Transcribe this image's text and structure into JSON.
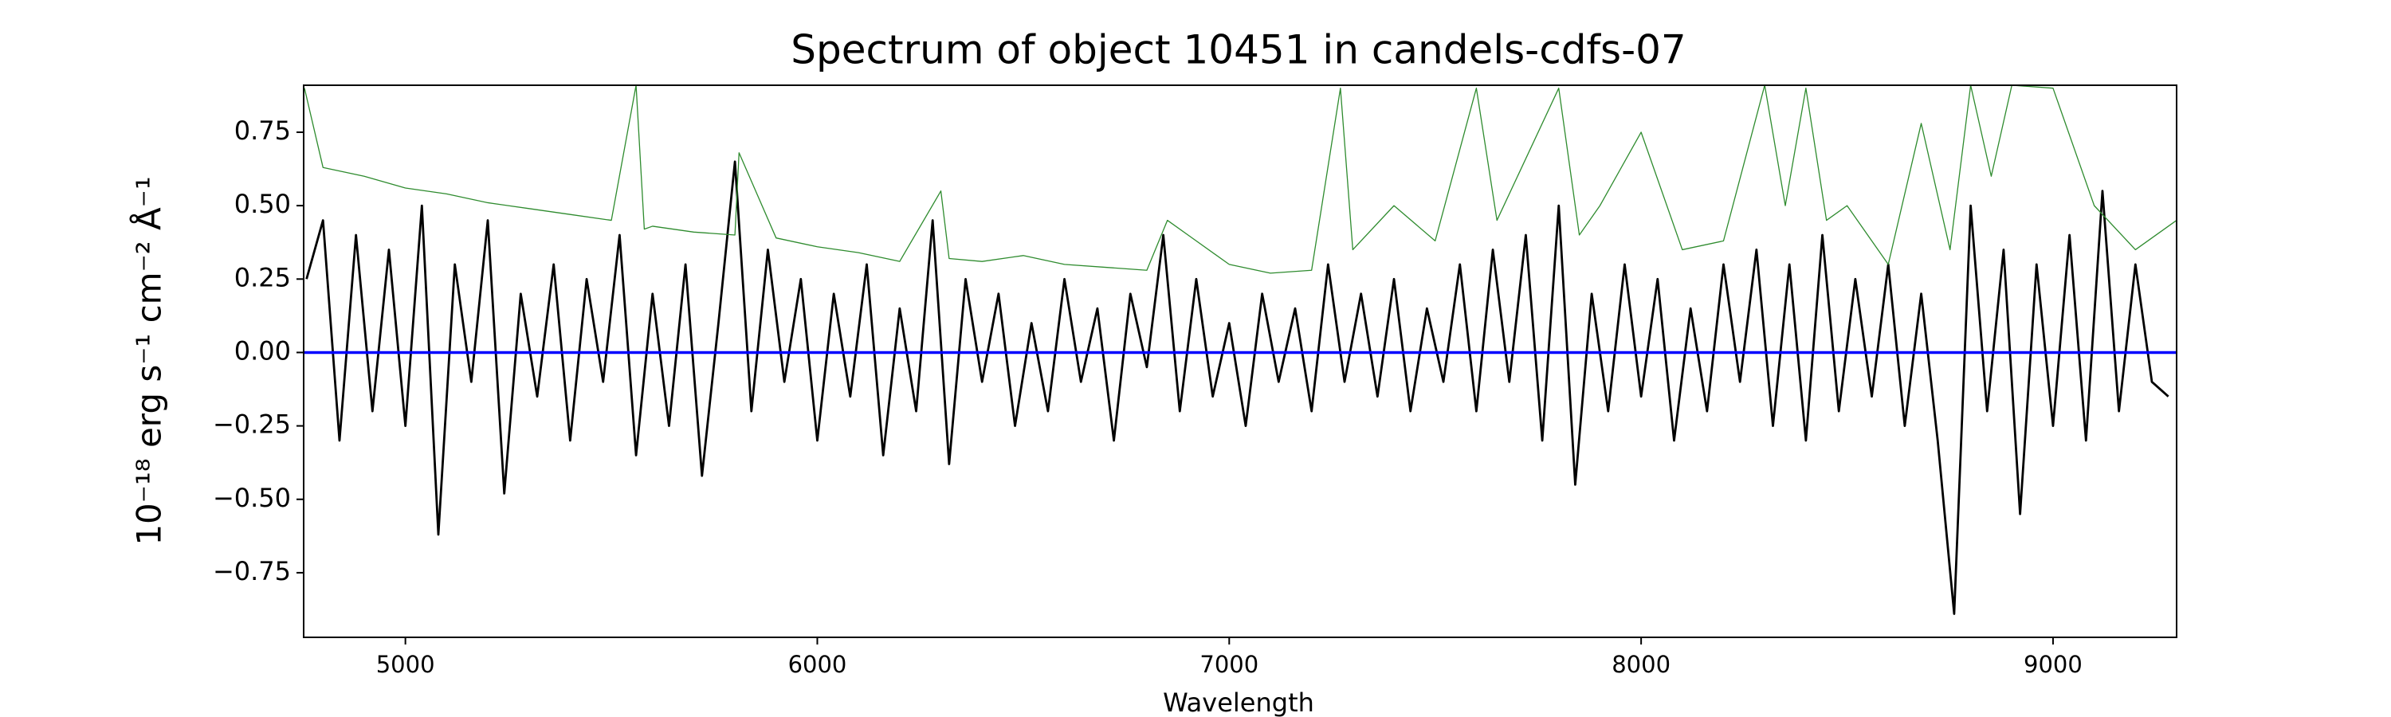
{
  "chart_data": {
    "type": "line",
    "title": "Spectrum of object 10451 in candels-cdfs-07",
    "x_label": "Wavelength",
    "y_label": "10⁻¹⁸ erg s⁻¹ cm⁻² Å⁻¹",
    "xlim": [
      4753,
      9300
    ],
    "ylim": [
      -0.97,
      0.91
    ],
    "xticks": [
      5000,
      6000,
      7000,
      8000,
      9000
    ],
    "yticks": [
      {
        "value": -0.75,
        "label": "−0.75"
      },
      {
        "value": -0.5,
        "label": "−0.50"
      },
      {
        "value": -0.25,
        "label": "−0.25"
      },
      {
        "value": 0,
        "label": "0.00"
      },
      {
        "value": 0.25,
        "label": "0.25"
      },
      {
        "value": 0.5,
        "label": "0.50"
      },
      {
        "value": 0.75,
        "label": "0.75"
      }
    ],
    "series": [
      {
        "color": "#000000",
        "x": [
          4760,
          4800,
          4840,
          4880,
          4920,
          4960,
          5000,
          5040,
          5080,
          5120,
          5160,
          5200,
          5240,
          5280,
          5320,
          5360,
          5400,
          5440,
          5480,
          5520,
          5560,
          5600,
          5640,
          5680,
          5720,
          5760,
          5800,
          5840,
          5880,
          5920,
          5960,
          6000,
          6040,
          6080,
          6120,
          6160,
          6200,
          6240,
          6280,
          6320,
          6360,
          6400,
          6440,
          6480,
          6520,
          6560,
          6600,
          6640,
          6680,
          6720,
          6760,
          6800,
          6840,
          6880,
          6920,
          6960,
          7000,
          7040,
          7080,
          7120,
          7160,
          7200,
          7240,
          7280,
          7320,
          7360,
          7400,
          7440,
          7480,
          7520,
          7560,
          7600,
          7640,
          7680,
          7720,
          7760,
          7800,
          7840,
          7880,
          7920,
          7960,
          8000,
          8040,
          8080,
          8120,
          8160,
          8200,
          8240,
          8280,
          8320,
          8360,
          8400,
          8440,
          8480,
          8520,
          8560,
          8600,
          8640,
          8680,
          8720,
          8760,
          8800,
          8840,
          8880,
          8920,
          8960,
          9000,
          9040,
          9080,
          9120,
          9160,
          9200,
          9240,
          9280
        ],
        "values": [
          0.25,
          0.45,
          -0.3,
          0.4,
          -0.2,
          0.35,
          -0.25,
          0.5,
          -0.62,
          0.3,
          -0.1,
          0.45,
          -0.48,
          0.2,
          -0.15,
          0.3,
          -0.3,
          0.25,
          -0.1,
          0.4,
          -0.35,
          0.2,
          -0.25,
          0.3,
          -0.42,
          0.1,
          0.65,
          -0.2,
          0.35,
          -0.1,
          0.25,
          -0.3,
          0.2,
          -0.15,
          0.3,
          -0.35,
          0.15,
          -0.2,
          0.45,
          -0.38,
          0.25,
          -0.1,
          0.2,
          -0.25,
          0.1,
          -0.2,
          0.25,
          -0.1,
          0.15,
          -0.3,
          0.2,
          -0.05,
          0.4,
          -0.2,
          0.25,
          -0.15,
          0.1,
          -0.25,
          0.2,
          -0.1,
          0.15,
          -0.2,
          0.3,
          -0.1,
          0.2,
          -0.15,
          0.25,
          -0.2,
          0.15,
          -0.1,
          0.3,
          -0.2,
          0.35,
          -0.1,
          0.4,
          -0.3,
          0.5,
          -0.45,
          0.2,
          -0.2,
          0.3,
          -0.15,
          0.25,
          -0.3,
          0.15,
          -0.2,
          0.3,
          -0.1,
          0.35,
          -0.25,
          0.3,
          -0.3,
          0.4,
          -0.2,
          0.25,
          -0.15,
          0.3,
          -0.25,
          0.2,
          -0.3,
          -0.89,
          0.5,
          -0.2,
          0.35,
          -0.55,
          0.3,
          -0.25,
          0.4,
          -0.3,
          0.55,
          -0.2,
          0.3,
          -0.1,
          -0.15
        ]
      },
      {
        "color": "#2e8b2e",
        "x": [
          4755,
          4800,
          4900,
          5000,
          5100,
          5200,
          5300,
          5400,
          5500,
          5560,
          5580,
          5600,
          5700,
          5800,
          5810,
          5900,
          6000,
          6100,
          6200,
          6300,
          6320,
          6400,
          6500,
          6600,
          6700,
          6800,
          6850,
          6900,
          7000,
          7100,
          7200,
          7270,
          7300,
          7400,
          7500,
          7600,
          7650,
          7700,
          7800,
          7850,
          7900,
          8000,
          8100,
          8200,
          8300,
          8350,
          8400,
          8450,
          8500,
          8600,
          8680,
          8750,
          8800,
          8850,
          8900,
          9000,
          9100,
          9200,
          9300
        ],
        "values": [
          0.9,
          0.63,
          0.6,
          0.56,
          0.54,
          0.51,
          0.49,
          0.47,
          0.45,
          0.91,
          0.42,
          0.43,
          0.41,
          0.4,
          0.68,
          0.39,
          0.36,
          0.34,
          0.31,
          0.55,
          0.32,
          0.31,
          0.33,
          0.3,
          0.29,
          0.28,
          0.45,
          0.4,
          0.3,
          0.27,
          0.28,
          0.9,
          0.35,
          0.5,
          0.38,
          0.9,
          0.45,
          0.6,
          0.9,
          0.4,
          0.5,
          0.75,
          0.35,
          0.38,
          0.91,
          0.5,
          0.9,
          0.45,
          0.5,
          0.3,
          0.78,
          0.35,
          0.91,
          0.6,
          0.91,
          0.9,
          0.5,
          0.35,
          0.45
        ]
      },
      {
        "color": "#0000ff",
        "x": [
          4753,
          9300
        ],
        "values": [
          0,
          0
        ]
      }
    ]
  }
}
